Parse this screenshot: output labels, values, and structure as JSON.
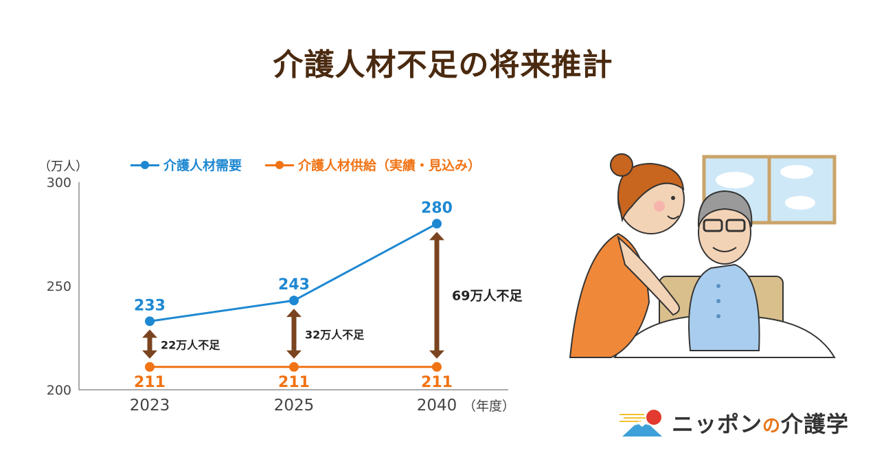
{
  "title": "介護人材不足の将来推計",
  "unit_label": "（万人）",
  "year_unit_label": "（年度）",
  "legend": [
    {
      "label": "介護人材需要",
      "color": "#1e88d2"
    },
    {
      "label": "介護人材供給（実績・見込み）",
      "color": "#f07314"
    }
  ],
  "chart_data": {
    "type": "line",
    "categories": [
      "2023",
      "2025",
      "2040"
    ],
    "series": [
      {
        "name": "介護人材需要",
        "values": [
          233,
          243,
          280
        ],
        "color": "#1e88d2"
      },
      {
        "name": "介護人材供給（実績・見込み）",
        "values": [
          211,
          211,
          211
        ],
        "color": "#f07314"
      }
    ],
    "ylim": [
      200,
      300
    ],
    "yticks": [
      "300",
      "250",
      "200"
    ],
    "annotations": [
      {
        "category": "2023",
        "text": "22万人不足"
      },
      {
        "category": "2025",
        "text": "32万人不足"
      },
      {
        "category": "2040",
        "text": "69万人不足"
      }
    ],
    "gap_arrow_color": "#7a4420",
    "grid": false
  },
  "brand": {
    "part1": "ニッポン",
    "part2": "の",
    "part3": "介護学"
  },
  "illustration": {
    "icon": "caregiver-with-elderly-man"
  }
}
